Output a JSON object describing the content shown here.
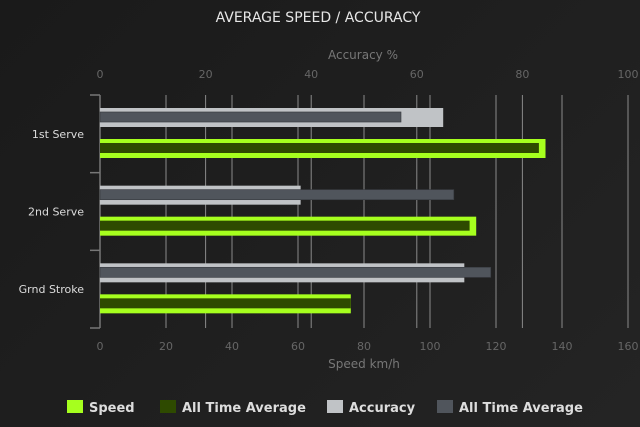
{
  "chart_data": {
    "type": "bar",
    "orientation": "horizontal",
    "title": "AVERAGE SPEED / ACCURACY",
    "categories": [
      "1st Serve",
      "2nd Serve",
      "Grnd Stroke"
    ],
    "top_axis": {
      "label": "Accuracy %",
      "range": [
        0,
        100
      ],
      "ticks": [
        "0",
        "20",
        "40",
        "60",
        "80",
        "100"
      ]
    },
    "bottom_axis": {
      "label": "Speed km/h",
      "range": [
        0,
        160
      ],
      "ticks": [
        "0",
        "20",
        "40",
        "60",
        "80",
        "100",
        "120",
        "140",
        "160"
      ]
    },
    "grid": true,
    "legend_placement": "bottom",
    "series": [
      {
        "name": "Speed",
        "axis": "speed",
        "color": "#a6ff1e",
        "values": [
          135,
          114,
          76
        ]
      },
      {
        "name": "All Time Average",
        "axis": "speed",
        "color": "#2e4a00",
        "values": [
          133,
          112,
          76
        ]
      },
      {
        "name": "Accuracy",
        "axis": "accuracy",
        "color": "#c0c3c6",
        "values": [
          65,
          38,
          69
        ]
      },
      {
        "name": "All Time Average",
        "axis": "accuracy",
        "color": "#50555c",
        "values": [
          57,
          67,
          74
        ]
      }
    ]
  }
}
